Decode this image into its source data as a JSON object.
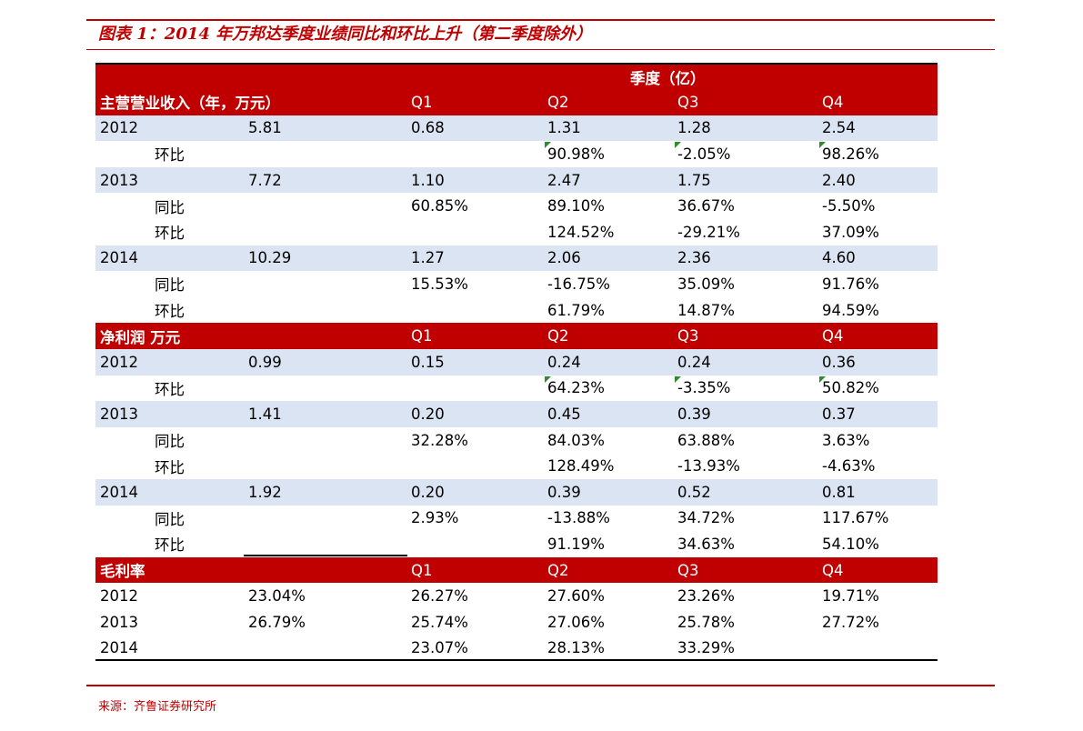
{
  "title": "图表 1：2014 年万邦达季度业绩同比和环比上升（第二季度除外）",
  "source": "来源：齐鲁证券研究所",
  "colors": {
    "accent": "#c00000",
    "row_alt": "#dbe4f2",
    "flag": "#2e8b2e"
  },
  "chart_data": {
    "type": "table",
    "super_header": "季度（亿）",
    "columns": [
      "",
      "",
      "",
      "Q1",
      "Q2",
      "Q3",
      "Q4"
    ],
    "sections": [
      {
        "label": "主营营业收入（年，万元）",
        "quarters": [
          "Q1",
          "Q2",
          "Q3",
          "Q4"
        ],
        "rows": [
          {
            "year": "2012",
            "sub": "",
            "annual": "5.81",
            "q": [
              "0.68",
              "1.31",
              "1.28",
              "2.54"
            ],
            "style": "alt"
          },
          {
            "year": "",
            "sub": "环比",
            "annual": "",
            "q": [
              "",
              "90.98%",
              "-2.05%",
              "98.26%"
            ],
            "style": "white",
            "flags": [
              false,
              true,
              true,
              true
            ]
          },
          {
            "year": "2013",
            "sub": "",
            "annual": "7.72",
            "q": [
              "1.10",
              "2.47",
              "1.75",
              "2.40"
            ],
            "style": "alt"
          },
          {
            "year": "",
            "sub": "同比",
            "annual": "",
            "q": [
              "60.85%",
              "89.10%",
              "36.67%",
              "-5.50%"
            ],
            "style": "white"
          },
          {
            "year": "",
            "sub": "环比",
            "annual": "",
            "q": [
              "",
              "124.52%",
              "-29.21%",
              "37.09%"
            ],
            "style": "white"
          },
          {
            "year": "2014",
            "sub": "",
            "annual": "10.29",
            "q": [
              "1.27",
              "2.06",
              "2.36",
              "4.60"
            ],
            "style": "alt"
          },
          {
            "year": "",
            "sub": "同比",
            "annual": "",
            "q": [
              "15.53%",
              "-16.75%",
              "35.09%",
              "91.76%"
            ],
            "style": "white"
          },
          {
            "year": "",
            "sub": "环比",
            "annual": "",
            "q": [
              "",
              "61.79%",
              "14.87%",
              "94.59%"
            ],
            "style": "white"
          }
        ]
      },
      {
        "label": "净利润 万元",
        "quarters": [
          "Q1",
          "Q2",
          "Q3",
          "Q4"
        ],
        "rows": [
          {
            "year": "2012",
            "sub": "",
            "annual": "0.99",
            "q": [
              "0.15",
              "0.24",
              "0.24",
              "0.36"
            ],
            "style": "alt"
          },
          {
            "year": "",
            "sub": "环比",
            "annual": "",
            "q": [
              "",
              "64.23%",
              "-3.35%",
              "50.82%"
            ],
            "style": "white",
            "flags": [
              false,
              true,
              true,
              true
            ]
          },
          {
            "year": "2013",
            "sub": "",
            "annual": "1.41",
            "q": [
              "0.20",
              "0.45",
              "0.39",
              "0.37"
            ],
            "style": "alt"
          },
          {
            "year": "",
            "sub": "同比",
            "annual": "",
            "q": [
              "32.28%",
              "84.03%",
              "63.88%",
              "3.63%"
            ],
            "style": "white"
          },
          {
            "year": "",
            "sub": "环比",
            "annual": "",
            "q": [
              "",
              "128.49%",
              "-13.93%",
              "-4.63%"
            ],
            "style": "white"
          },
          {
            "year": "2014",
            "sub": "",
            "annual": "1.92",
            "q": [
              "0.20",
              "0.39",
              "0.52",
              "0.81"
            ],
            "style": "alt"
          },
          {
            "year": "",
            "sub": "同比",
            "annual": "",
            "q": [
              "2.93%",
              "-13.88%",
              "34.72%",
              "117.67%"
            ],
            "style": "white"
          },
          {
            "year": "",
            "sub": "环比",
            "annual": "",
            "q": [
              "",
              "91.19%",
              "34.63%",
              "54.10%"
            ],
            "style": "white"
          }
        ]
      },
      {
        "label": "毛利率",
        "quarters": [
          "Q1",
          "Q2",
          "Q3",
          "Q4"
        ],
        "rows": [
          {
            "year": "2012",
            "sub": "",
            "annual": "23.04%",
            "q": [
              "26.27%",
              "27.60%",
              "23.26%",
              "19.71%"
            ],
            "style": "white"
          },
          {
            "year": "2013",
            "sub": "",
            "annual": "26.79%",
            "q": [
              "25.74%",
              "27.06%",
              "25.78%",
              "27.72%"
            ],
            "style": "white"
          },
          {
            "year": "2014",
            "sub": "",
            "annual": "",
            "q": [
              "23.07%",
              "28.13%",
              "33.29%",
              ""
            ],
            "style": "white"
          }
        ]
      }
    ]
  }
}
